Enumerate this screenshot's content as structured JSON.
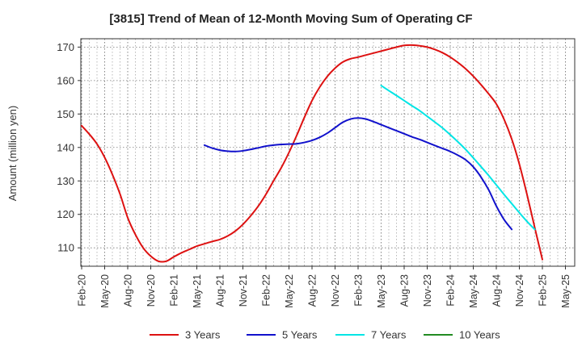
{
  "chart_data": {
    "type": "line",
    "title": "[3815]  Trend of Mean of 12-Month Moving Sum of Operating CF",
    "xlabel": "",
    "ylabel": "Amount (million yen)",
    "ylim": [
      104.5,
      172.5
    ],
    "yticks": [
      110,
      120,
      130,
      140,
      150,
      160,
      170
    ],
    "x_categories": [
      "Feb-20",
      "May-20",
      "Aug-20",
      "Nov-20",
      "Feb-21",
      "May-21",
      "Aug-21",
      "Nov-21",
      "Feb-22",
      "May-22",
      "Aug-22",
      "Nov-22",
      "Feb-23",
      "May-23",
      "Aug-23",
      "Nov-23",
      "Feb-24",
      "May-24",
      "Aug-24",
      "Nov-24",
      "Feb-25",
      "May-25"
    ],
    "grid": true,
    "legend_position": "bottom",
    "series": [
      {
        "name": "3 Years",
        "color": "#dd1111",
        "points": [
          [
            0,
            146.5
          ],
          [
            0.33,
            144
          ],
          [
            0.67,
            141
          ],
          [
            1,
            137
          ],
          [
            1.33,
            132
          ],
          [
            1.67,
            126
          ],
          [
            2,
            119
          ],
          [
            2.33,
            114
          ],
          [
            2.67,
            110
          ],
          [
            3,
            107.5
          ],
          [
            3.33,
            106
          ],
          [
            3.67,
            106
          ],
          [
            4,
            107.3
          ],
          [
            4.33,
            108.5
          ],
          [
            4.67,
            109.5
          ],
          [
            5,
            110.5
          ],
          [
            5.33,
            111.2
          ],
          [
            5.67,
            111.9
          ],
          [
            6,
            112.5
          ],
          [
            6.33,
            113.5
          ],
          [
            6.67,
            115
          ],
          [
            7,
            117
          ],
          [
            7.33,
            119.5
          ],
          [
            7.67,
            122.5
          ],
          [
            8,
            126
          ],
          [
            8.33,
            130
          ],
          [
            8.67,
            134
          ],
          [
            9,
            138.5
          ],
          [
            9.33,
            143.5
          ],
          [
            9.67,
            149
          ],
          [
            10,
            154
          ],
          [
            10.33,
            158
          ],
          [
            10.67,
            161.3
          ],
          [
            11,
            163.7
          ],
          [
            11.33,
            165.5
          ],
          [
            11.67,
            166.5
          ],
          [
            12,
            167
          ],
          [
            12.33,
            167.6
          ],
          [
            12.67,
            168.2
          ],
          [
            13,
            168.8
          ],
          [
            13.33,
            169.4
          ],
          [
            13.67,
            170
          ],
          [
            14,
            170.5
          ],
          [
            14.33,
            170.6
          ],
          [
            14.67,
            170.4
          ],
          [
            15,
            170
          ],
          [
            15.33,
            169.3
          ],
          [
            15.67,
            168.3
          ],
          [
            16,
            167
          ],
          [
            16.33,
            165.4
          ],
          [
            16.67,
            163.5
          ],
          [
            17,
            161.3
          ],
          [
            17.33,
            158.8
          ],
          [
            17.67,
            156
          ],
          [
            18,
            153
          ],
          [
            18.33,
            148.5
          ],
          [
            18.67,
            142.5
          ],
          [
            19,
            135
          ],
          [
            19.33,
            126
          ],
          [
            19.67,
            116
          ],
          [
            20,
            106.5
          ]
        ]
      },
      {
        "name": "5 Years",
        "color": "#1111cc",
        "points": [
          [
            5.33,
            140.7
          ],
          [
            5.67,
            139.8
          ],
          [
            6,
            139.2
          ],
          [
            6.33,
            138.9
          ],
          [
            6.67,
            138.8
          ],
          [
            7,
            139
          ],
          [
            7.33,
            139.4
          ],
          [
            7.67,
            139.9
          ],
          [
            8,
            140.4
          ],
          [
            8.33,
            140.7
          ],
          [
            8.67,
            140.9
          ],
          [
            9,
            141
          ],
          [
            9.33,
            141.1
          ],
          [
            9.67,
            141.5
          ],
          [
            10,
            142.1
          ],
          [
            10.33,
            143
          ],
          [
            10.67,
            144.3
          ],
          [
            11,
            145.9
          ],
          [
            11.33,
            147.5
          ],
          [
            11.67,
            148.5
          ],
          [
            12,
            148.8
          ],
          [
            12.33,
            148.5
          ],
          [
            12.67,
            147.7
          ],
          [
            13,
            146.8
          ],
          [
            13.33,
            145.9
          ],
          [
            13.67,
            145
          ],
          [
            14,
            144.1
          ],
          [
            14.33,
            143.2
          ],
          [
            14.67,
            142.4
          ],
          [
            15,
            141.5
          ],
          [
            15.33,
            140.6
          ],
          [
            15.67,
            139.7
          ],
          [
            16,
            138.8
          ],
          [
            16.33,
            137.7
          ],
          [
            16.67,
            136.3
          ],
          [
            17,
            134.2
          ],
          [
            17.33,
            131.2
          ],
          [
            17.67,
            127.3
          ],
          [
            18,
            122.5
          ],
          [
            18.33,
            118.5
          ],
          [
            18.67,
            115.5
          ]
        ]
      },
      {
        "name": "7 Years",
        "color": "#00e5e5",
        "points": [
          [
            13,
            158.5
          ],
          [
            13.33,
            157
          ],
          [
            13.67,
            155.5
          ],
          [
            14,
            154
          ],
          [
            14.33,
            152.5
          ],
          [
            14.67,
            151
          ],
          [
            15,
            149.3
          ],
          [
            15.33,
            147.6
          ],
          [
            15.67,
            145.8
          ],
          [
            16,
            143.8
          ],
          [
            16.33,
            141.7
          ],
          [
            16.67,
            139.4
          ],
          [
            17,
            136.9
          ],
          [
            17.33,
            134.3
          ],
          [
            17.67,
            131.6
          ],
          [
            18,
            128.8
          ],
          [
            18.33,
            126
          ],
          [
            18.67,
            123.2
          ],
          [
            19,
            120.5
          ],
          [
            19.33,
            117.9
          ],
          [
            19.67,
            115.5
          ]
        ]
      },
      {
        "name": "10 Years",
        "color": "#228b22",
        "points": []
      }
    ]
  }
}
